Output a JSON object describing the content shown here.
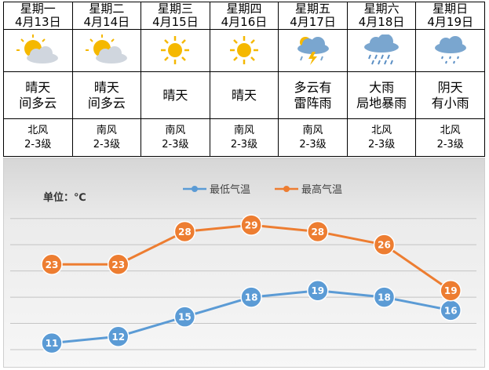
{
  "days": [
    {
      "name": "星期一",
      "date": "4月13日",
      "icon": "sun-cloud-icon",
      "condition": [
        "晴天",
        "间多云"
      ],
      "wind_dir": "北风",
      "wind_level": "2-3级"
    },
    {
      "name": "星期二",
      "date": "4月14日",
      "icon": "sun-cloud-icon",
      "condition": [
        "晴天",
        "间多云"
      ],
      "wind_dir": "南风",
      "wind_level": "2-3级"
    },
    {
      "name": "星期三",
      "date": "4月15日",
      "icon": "sun-icon",
      "condition": [
        "晴天"
      ],
      "wind_dir": "南风",
      "wind_level": "2-3级"
    },
    {
      "name": "星期四",
      "date": "4月16日",
      "icon": "sun-icon",
      "condition": [
        "晴天"
      ],
      "wind_dir": "南风",
      "wind_level": "2-3级"
    },
    {
      "name": "星期五",
      "date": "4月17日",
      "icon": "thunderstorm-icon",
      "condition": [
        "多云有",
        "雷阵雨"
      ],
      "wind_dir": "南风",
      "wind_level": "2-3级"
    },
    {
      "name": "星期六",
      "date": "4月18日",
      "icon": "heavy-rain-icon",
      "condition": [
        "大雨",
        "局地暴雨"
      ],
      "wind_dir": "北风",
      "wind_level": "2-3级"
    },
    {
      "name": "星期日",
      "date": "4月19日",
      "icon": "light-rain-icon",
      "condition": [
        "阴天",
        "有小雨"
      ],
      "wind_dir": "北风",
      "wind_level": "2-3级"
    }
  ],
  "colors": {
    "low": "#5b9bd5",
    "high": "#ed7d31",
    "sun": "#f5b800",
    "cloud": "#d0d6de",
    "rain_cloud": "#7aa6cf"
  },
  "chart_data": {
    "type": "line",
    "unit_label": "单位：℃",
    "categories": [
      "4月13日",
      "4月14日",
      "4月15日",
      "4月16日",
      "4月17日",
      "4月18日",
      "4月19日"
    ],
    "series": [
      {
        "name": "最低气温",
        "color": "#5b9bd5",
        "values": [
          11,
          12,
          15,
          18,
          19,
          18,
          16
        ]
      },
      {
        "name": "最高气温",
        "color": "#ed7d31",
        "values": [
          23,
          23,
          28,
          29,
          28,
          26,
          19
        ]
      }
    ],
    "ylim": [
      10,
      32
    ],
    "grid": true,
    "legend": "top-center",
    "data_labels": true
  }
}
